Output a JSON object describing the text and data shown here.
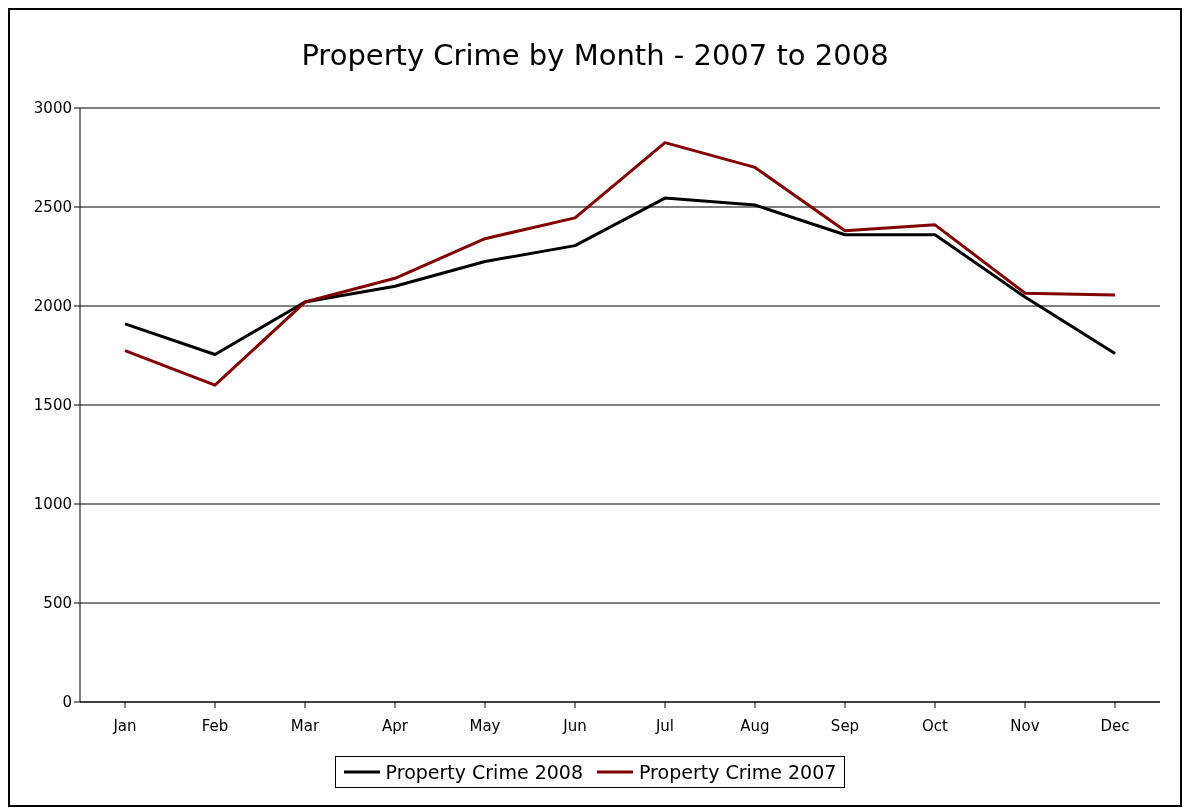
{
  "chart_data": {
    "type": "line",
    "title": "Property Crime by Month - 2007 to 2008",
    "categories": [
      "Jan",
      "Feb",
      "Mar",
      "Apr",
      "May",
      "Jun",
      "Jul",
      "Aug",
      "Sep",
      "Oct",
      "Nov",
      "Dec"
    ],
    "series": [
      {
        "name": "Property Crime 2008",
        "color": "#000000",
        "values": [
          1910,
          1755,
          2020,
          2100,
          2225,
          2305,
          2545,
          2510,
          2360,
          2360,
          2045,
          1760
        ]
      },
      {
        "name": "Property Crime 2007",
        "color": "#800000",
        "values": [
          1775,
          1600,
          2020,
          2140,
          2340,
          2445,
          2825,
          2700,
          2380,
          2410,
          2065,
          2055
        ]
      }
    ],
    "ylim": [
      0,
      3000
    ],
    "yticks": [
      0,
      500,
      1000,
      1500,
      2000,
      2500,
      3000
    ],
    "grid": "y",
    "legend": "bottom",
    "marker": "none",
    "line_style": "solid"
  }
}
